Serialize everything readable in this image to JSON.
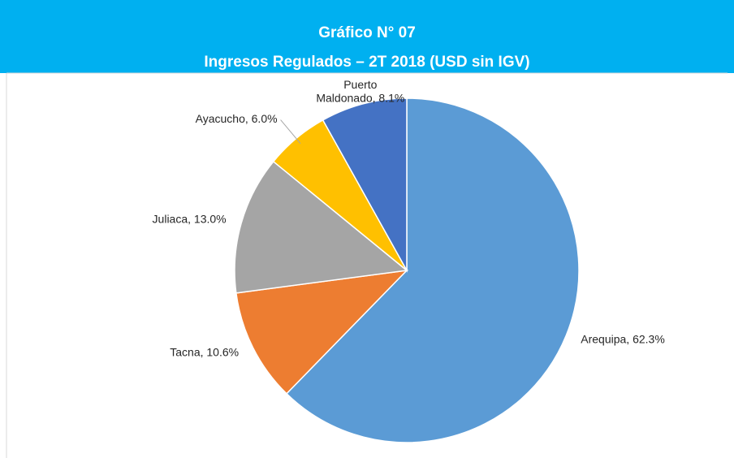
{
  "chart_data": {
    "type": "pie",
    "title": "Gráfico N° 07",
    "subtitle": "Ingresos Regulados – 2T 2018 (USD sin IGV)",
    "categories": [
      "Arequipa",
      "Tacna",
      "Juliaca",
      "Ayacucho",
      "Puerto Maldonado"
    ],
    "values": [
      62.3,
      10.6,
      13.0,
      6.0,
      8.1
    ],
    "value_labels": [
      "Arequipa, 62.3%",
      "Tacna, 10.6%",
      "Juliaca, 13.0%",
      "Ayacucho, 6.0%",
      "Puerto Maldonado, 8.1%"
    ],
    "colors": [
      "#5b9bd5",
      "#ed7d31",
      "#a5a5a5",
      "#ffc000",
      "#4472c4"
    ]
  }
}
